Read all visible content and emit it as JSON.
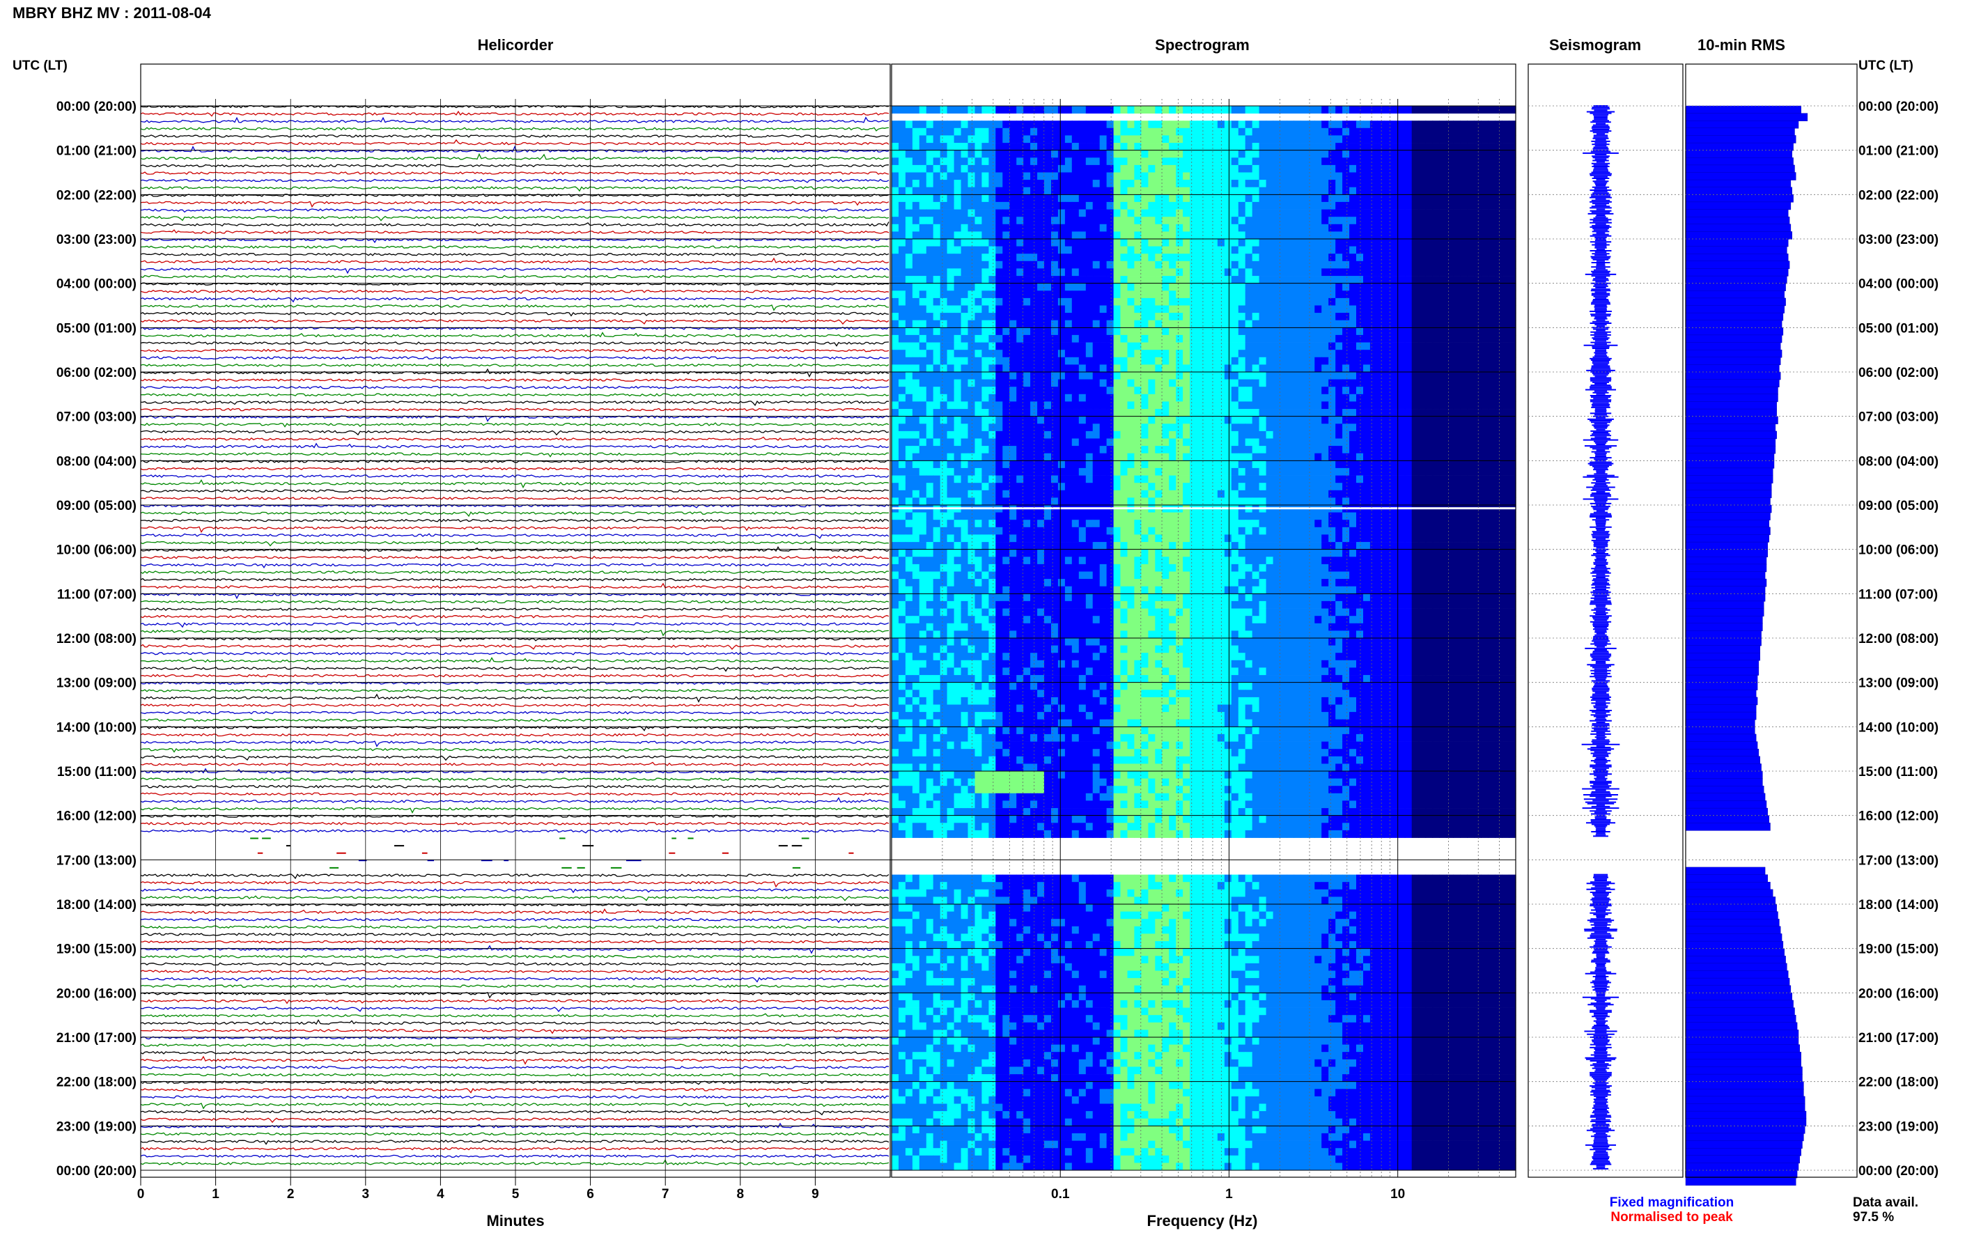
{
  "header": {
    "station_title": "MBRY BHZ MV : 2011-08-04",
    "left_axis_label": "UTC (LT)",
    "right_axis_label": "UTC (LT)"
  },
  "panels": {
    "helicorder_title": "Helicorder",
    "spectrogram_title": "Spectrogram",
    "seismogram_title": "Seismogram",
    "rms_title": "10-min RMS"
  },
  "footer": {
    "minutes_label": "Minutes",
    "frequency_label": "Frequency (Hz)",
    "legend_fixed": "Fixed magnification",
    "legend_normalised": "Normalised to peak",
    "data_avail_label": "Data avail.",
    "data_avail_value": "97.5 %"
  },
  "colors": {
    "fixed_magnification": "#0000ff",
    "normalised_to_peak": "#ff0000",
    "trace_cycle": [
      "#000000",
      "#cc0000",
      "#0000cc",
      "#008800"
    ],
    "spectrogram_colormap": [
      "#000080",
      "#0000ff",
      "#0080ff",
      "#00ffff",
      "#80ff80"
    ],
    "rms_bar": "#0000ff"
  },
  "chart_data": {
    "type": "heatmap",
    "title": "MBRY BHZ MV : 2011-08-04",
    "time_ticks": [
      "00:00 (20:00)",
      "01:00 (21:00)",
      "02:00 (22:00)",
      "03:00 (23:00)",
      "04:00 (00:00)",
      "05:00 (01:00)",
      "06:00 (02:00)",
      "07:00 (03:00)",
      "08:00 (04:00)",
      "09:00 (05:00)",
      "10:00 (06:00)",
      "11:00 (07:00)",
      "12:00 (08:00)",
      "13:00 (09:00)",
      "14:00 (10:00)",
      "15:00 (11:00)",
      "16:00 (12:00)",
      "17:00 (13:00)",
      "18:00 (14:00)",
      "19:00 (15:00)",
      "20:00 (16:00)",
      "21:00 (17:00)",
      "22:00 (18:00)",
      "23:00 (19:00)",
      "00:00 (20:00)"
    ],
    "helicorder": {
      "xlabel": "Minutes",
      "xlim": [
        0,
        10
      ],
      "x_ticks": [
        "0",
        "1",
        "2",
        "3",
        "4",
        "5",
        "6",
        "7",
        "8",
        "9"
      ],
      "lines_per_hour": 6,
      "line_minutes": 10
    },
    "spectrogram": {
      "xlabel": "Frequency (Hz)",
      "x_scale": "log",
      "x_ticks": [
        "0.1",
        "1",
        "10"
      ],
      "xlim_hz": [
        0.01,
        50
      ],
      "peak_energy_band_hz": [
        0.2,
        0.6
      ],
      "gaps_hours": [
        [
          0.1,
          0.3
        ],
        [
          9.05,
          9.1
        ],
        [
          16.5,
          17.3
        ]
      ]
    },
    "data_gap_hours": [
      16.5,
      17.3
    ],
    "rms_10min": [
      0.9,
      0.95,
      0.88,
      0.85,
      0.86,
      0.84,
      0.83,
      0.84,
      0.85,
      0.86,
      0.82,
      0.83,
      0.84,
      0.82,
      0.8,
      0.81,
      0.82,
      0.83,
      0.8,
      0.79,
      0.8,
      0.81,
      0.8,
      0.79,
      0.78,
      0.77,
      0.78,
      0.77,
      0.76,
      0.75,
      0.76,
      0.75,
      0.74,
      0.75,
      0.74,
      0.73,
      0.74,
      0.73,
      0.72,
      0.72,
      0.71,
      0.71,
      0.72,
      0.7,
      0.71,
      0.7,
      0.7,
      0.69,
      0.69,
      0.68,
      0.68,
      0.67,
      0.67,
      0.66,
      0.67,
      0.66,
      0.65,
      0.66,
      0.65,
      0.64,
      0.64,
      0.63,
      0.63,
      0.62,
      0.63,
      0.62,
      0.62,
      0.61,
      0.61,
      0.6,
      0.6,
      0.59,
      0.59,
      0.58,
      0.58,
      0.57,
      0.57,
      0.56,
      0.56,
      0.55,
      0.56,
      0.55,
      0.55,
      0.54,
      0.54,
      0.55,
      0.56,
      0.57,
      0.58,
      0.59,
      0.6,
      0.6,
      0.61,
      0.62,
      0.63,
      0.64,
      0.65,
      0.66,
      0.0,
      0.0,
      0.0,
      0.0,
      0.0,
      0.62,
      0.64,
      0.66,
      0.68,
      0.7,
      0.71,
      0.72,
      0.73,
      0.74,
      0.75,
      0.76,
      0.77,
      0.78,
      0.79,
      0.8,
      0.81,
      0.82,
      0.83,
      0.84,
      0.85,
      0.86,
      0.87,
      0.88,
      0.88,
      0.89,
      0.9,
      0.9,
      0.91,
      0.91,
      0.92,
      0.92,
      0.93,
      0.93,
      0.94,
      0.94,
      0.93,
      0.92,
      0.91,
      0.9,
      0.89,
      0.88,
      0.87,
      0.86
    ]
  }
}
